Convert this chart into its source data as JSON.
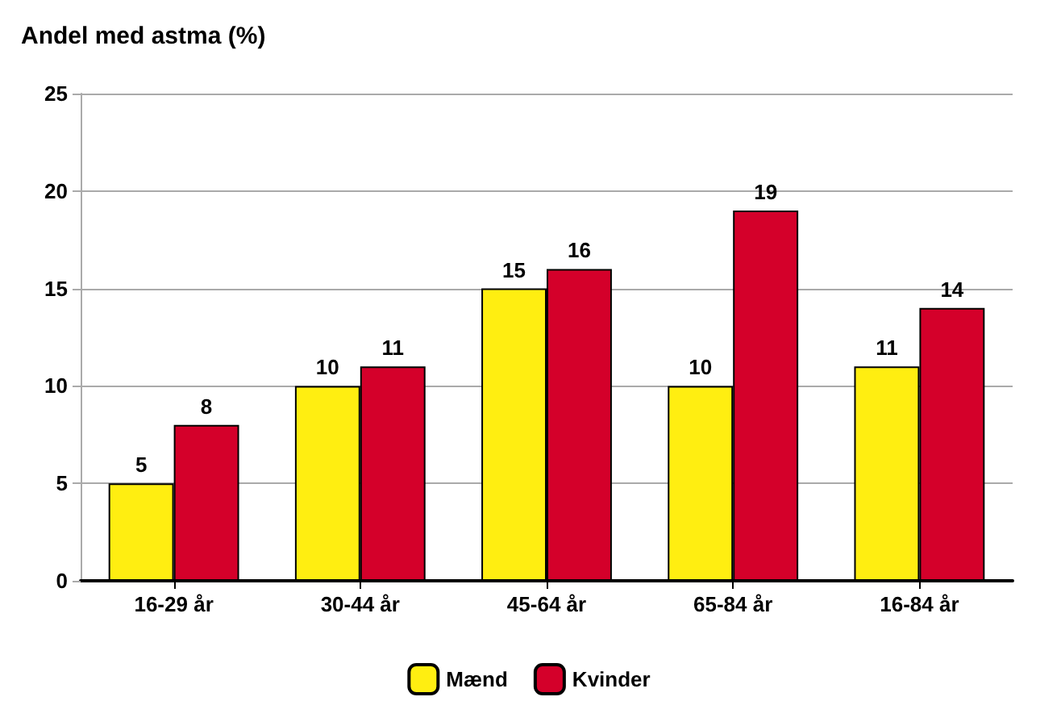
{
  "chart_data": {
    "type": "bar",
    "title": "Andel med astma (%)",
    "categories": [
      "16-29 år",
      "30-44 år",
      "45-64 år",
      "65-84 år",
      "16-84 år"
    ],
    "series": [
      {
        "name": "Mænd",
        "color": "#ffee11",
        "values": [
          5,
          10,
          15,
          10,
          11
        ]
      },
      {
        "name": "Kvinder",
        "color": "#d4002a",
        "values": [
          8,
          11,
          16,
          19,
          14
        ]
      }
    ],
    "ylim": [
      0,
      25
    ],
    "yticks": [
      0,
      5,
      10,
      15,
      20,
      25
    ],
    "grid": "y",
    "legend": "bottom",
    "data_labels": true
  }
}
